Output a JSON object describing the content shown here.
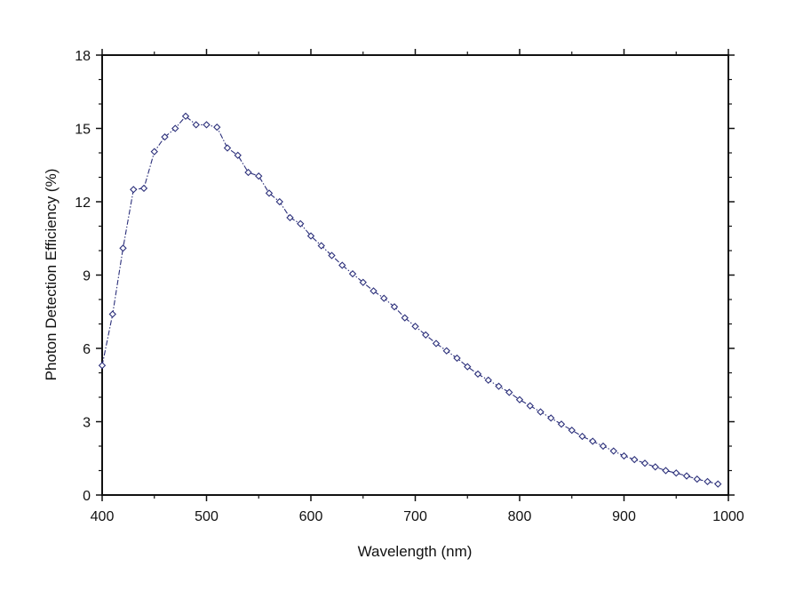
{
  "chart_data": {
    "type": "line",
    "title": "",
    "xlabel": "Wavelength (nm)",
    "ylabel": "Photon Detection Efficiency (%)",
    "xlim": [
      400,
      1000
    ],
    "ylim": [
      0,
      18
    ],
    "x_ticks": [
      "400",
      "500",
      "600",
      "700",
      "800",
      "900",
      "1000"
    ],
    "y_ticks": [
      "0",
      "3",
      "6",
      "9",
      "12",
      "15",
      "18"
    ],
    "grid": false,
    "legend": "none",
    "marker": "open-diamond",
    "line_style": "dash-dot",
    "color": "#2b2f7a",
    "series": [
      {
        "x": [
          400,
          410,
          420,
          430,
          440,
          450,
          460,
          470,
          480,
          490,
          500,
          510,
          520,
          530,
          540,
          550,
          560,
          570,
          580,
          590,
          600,
          610,
          620,
          630,
          640,
          650,
          660,
          670,
          680,
          690,
          700,
          710,
          720,
          730,
          740,
          750,
          760,
          770,
          780,
          790,
          800,
          810,
          820,
          830,
          840,
          850,
          860,
          870,
          880,
          890,
          900,
          910,
          920,
          930,
          940,
          950,
          960,
          970,
          980,
          990
        ],
        "values": [
          5.3,
          7.4,
          10.1,
          12.5,
          12.55,
          14.05,
          14.65,
          15.0,
          15.5,
          15.15,
          15.15,
          15.05,
          14.2,
          13.9,
          13.2,
          13.05,
          12.35,
          12.0,
          11.35,
          11.1,
          10.6,
          10.2,
          9.8,
          9.4,
          9.05,
          8.7,
          8.35,
          8.05,
          7.7,
          7.25,
          6.9,
          6.55,
          6.2,
          5.9,
          5.6,
          5.25,
          4.95,
          4.7,
          4.45,
          4.2,
          3.9,
          3.65,
          3.4,
          3.15,
          2.9,
          2.65,
          2.4,
          2.2,
          2.0,
          1.8,
          1.6,
          1.45,
          1.3,
          1.15,
          1.0,
          0.9,
          0.78,
          0.65,
          0.55,
          0.45
        ]
      }
    ]
  }
}
